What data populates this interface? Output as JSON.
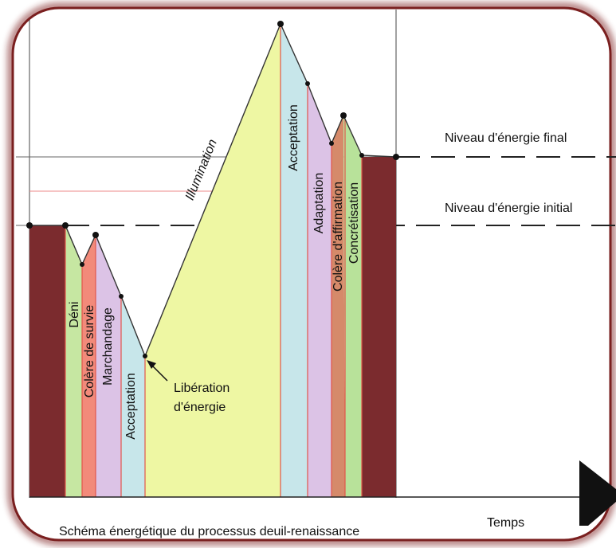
{
  "caption": "Schéma énergétique du processus deuil-renaissance",
  "axis": {
    "time_label": "Temps"
  },
  "levels": {
    "final_label": "Niveau d'énergie final",
    "initial_label": "Niveau d'énergie initial"
  },
  "phases": {
    "deni": "Déni",
    "colere_survie": "Colère de survie",
    "marchandage": "Marchandage",
    "acceptation_1": "Acceptation",
    "illumination": "Illumination",
    "acceptation_2": "Acceptation",
    "adaptation": "Adaptation",
    "colere_affirmation": "Colère d'affirmation",
    "concretisation": "Concrétisation"
  },
  "annotation": {
    "line1": "Libération",
    "line2": "d'énergie"
  },
  "colors": {
    "frame": "#7a1f1f",
    "block": "#7b2b2e",
    "deni": "#c6e7a2",
    "colere_survie": "#f28a7a",
    "marchandage": "#dcc3e6",
    "acceptation": "#c7e6ea",
    "illumination": "#eef7a3",
    "colere_affirmation": "#d58a6a",
    "concretisation": "#b8e29a",
    "phase_divider": "#e2554a"
  }
}
